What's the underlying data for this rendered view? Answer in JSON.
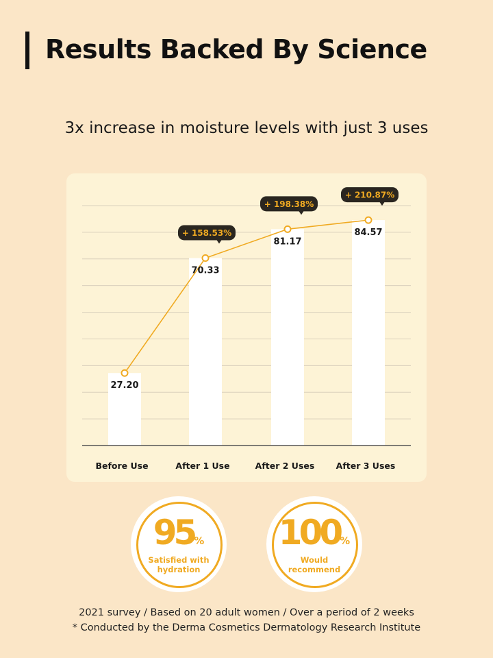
{
  "header": {
    "title": "Results Backed By Science",
    "subtitle": "3x increase in moisture levels with just 3 uses"
  },
  "colors": {
    "background": "#fbe6c7",
    "card": "#fdf3d6",
    "accent": "#f0aa22",
    "callout": "#2a2620",
    "bar": "#ffffff"
  },
  "chart_data": {
    "type": "bar",
    "categories": [
      "Before Use",
      "After 1 Use",
      "After 2 Uses",
      "After 3 Uses"
    ],
    "values": [
      27.2,
      70.33,
      81.17,
      84.57
    ],
    "value_labels": [
      "27.20",
      "70.33",
      "81.17",
      "84.57"
    ],
    "overlay_line": true,
    "callouts": [
      "",
      "+ 158.53%",
      "+ 198.38%",
      "+ 210.87%"
    ],
    "ylim": [
      0,
      90
    ],
    "grid": true,
    "title": "",
    "xlabel": "",
    "ylabel": ""
  },
  "stats": [
    {
      "value": "95",
      "unit": "%",
      "label_line1": "Satisfied with",
      "label_line2": "hydration"
    },
    {
      "value": "100",
      "unit": "%",
      "label_line1": "Would",
      "label_line2": "recommend"
    }
  ],
  "footnotes": [
    "2021 survey / Based on 20 adult women / Over a period of 2 weeks",
    "* Conducted by the Derma Cosmetics Dermatology Research Institute"
  ]
}
